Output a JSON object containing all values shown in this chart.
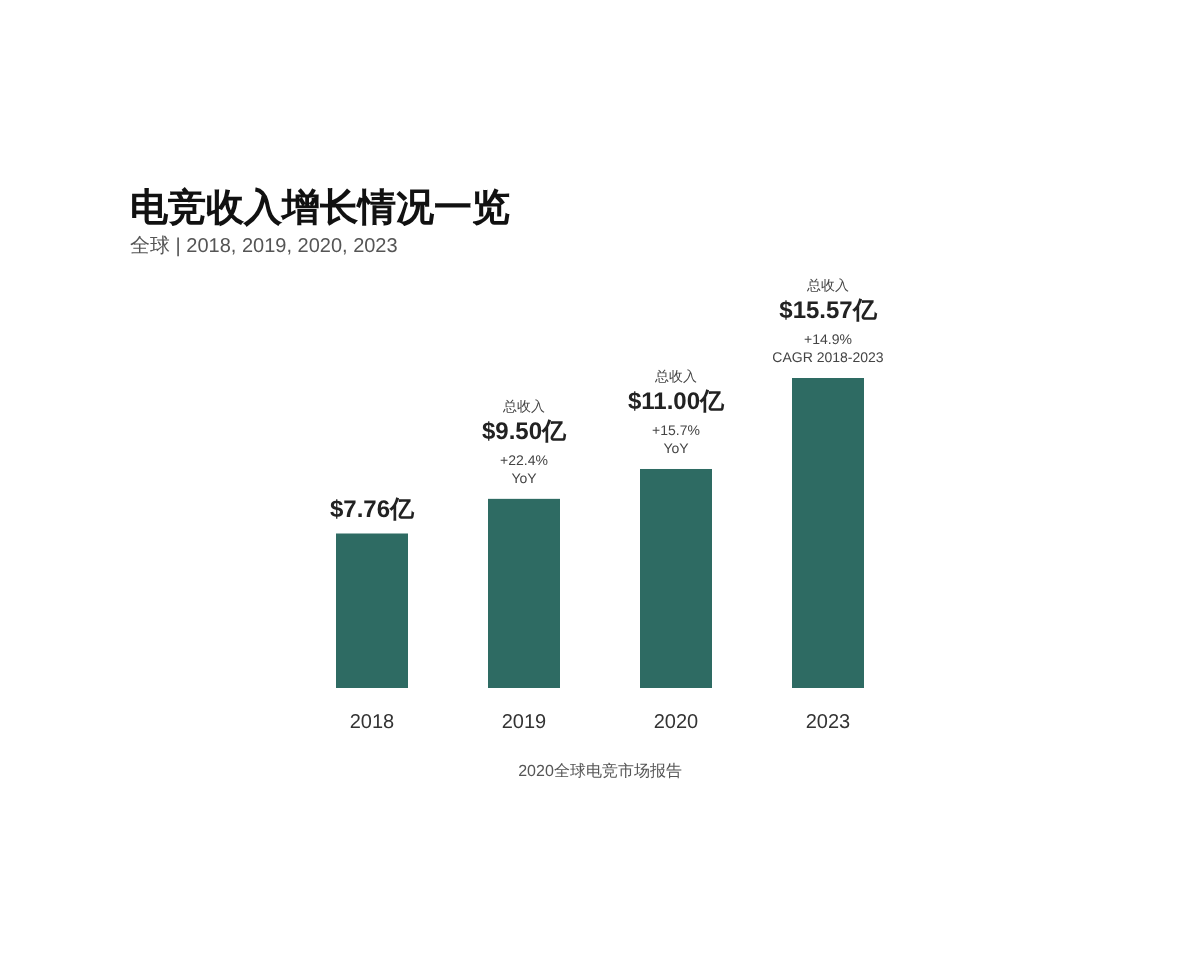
{
  "chart_data": {
    "type": "bar",
    "title": "电竞收入增长情况一览",
    "subtitle": "全球 | 2018, 2019, 2020, 2023",
    "categories": [
      "2018",
      "2019",
      "2020",
      "2023"
    ],
    "values": [
      7.76,
      9.5,
      11.0,
      15.57
    ],
    "value_labels": [
      "$7.76亿",
      "总收入\n$9.50亿\n+22.4%\nYoY",
      "总收入\n$11.00亿\n+15.7%\nYoY",
      "总收入\n$15.57亿\n+14.9%\nCAGR 2018-2023"
    ],
    "color": "#2e6b63",
    "annotations": [
      "2020全球电竞市场报告"
    ]
  }
}
